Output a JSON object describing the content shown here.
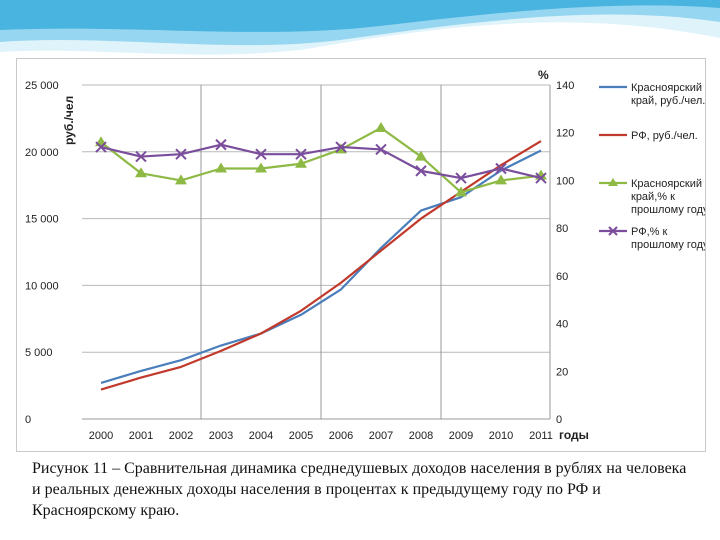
{
  "colors": {
    "banner_light": "#dff3fb",
    "banner_mid": "#8fd3ee",
    "banner_dark": "#3aaedc"
  },
  "caption": "Рисунок 11 – Сравнительная динамика среднедушевых доходов населения в рублях на человека и реальных денежных доходы населения в процентах к предыдущему году по РФ и Красноярскому краю.",
  "chart_data": {
    "type": "line",
    "x": [
      "2000",
      "2001",
      "2002",
      "2003",
      "2004",
      "2005",
      "2006",
      "2007",
      "2008",
      "2009",
      "2010",
      "2011"
    ],
    "xlabel": "годы",
    "ylabel_left": "руб./чел",
    "ylabel_right": "%",
    "ylim_left": [
      0,
      25000
    ],
    "ylim_right": [
      0,
      140
    ],
    "yticks_left": [
      "0",
      "5 000",
      "10 000",
      "15 000",
      "20 000",
      "25 000"
    ],
    "yticks_right": [
      "0",
      "20",
      "40",
      "60",
      "80",
      "100",
      "120",
      "140"
    ],
    "vertical_grid_years": [
      "2002",
      "2005",
      "2008"
    ],
    "series": [
      {
        "name": "Красноярский край, руб./чел.",
        "axis": "left",
        "color": "#4a7ebb",
        "marker": "none",
        "values": [
          2700,
          3600,
          4400,
          5500,
          6400,
          7800,
          9700,
          12800,
          15600,
          16600,
          18600,
          20100
        ]
      },
      {
        "name": "РФ, руб./чел.",
        "axis": "left",
        "color": "#c0392b",
        "marker": "none",
        "values": [
          2200,
          3100,
          3900,
          5100,
          6400,
          8100,
          10200,
          12600,
          15000,
          17000,
          19000,
          20800
        ]
      },
      {
        "name": "Красноярский край,% к прошлому году",
        "axis": "right",
        "color": "#8db944",
        "marker": "triangle",
        "values": [
          116,
          103,
          100,
          105,
          105,
          107,
          113,
          122,
          110,
          95,
          100,
          102
        ]
      },
      {
        "name": "РФ,% к прошлому году",
        "axis": "right",
        "color": "#7a4e9c",
        "marker": "x",
        "values": [
          114,
          110,
          111,
          115,
          111,
          111,
          114,
          113,
          104,
          101,
          105,
          101
        ]
      }
    ]
  }
}
